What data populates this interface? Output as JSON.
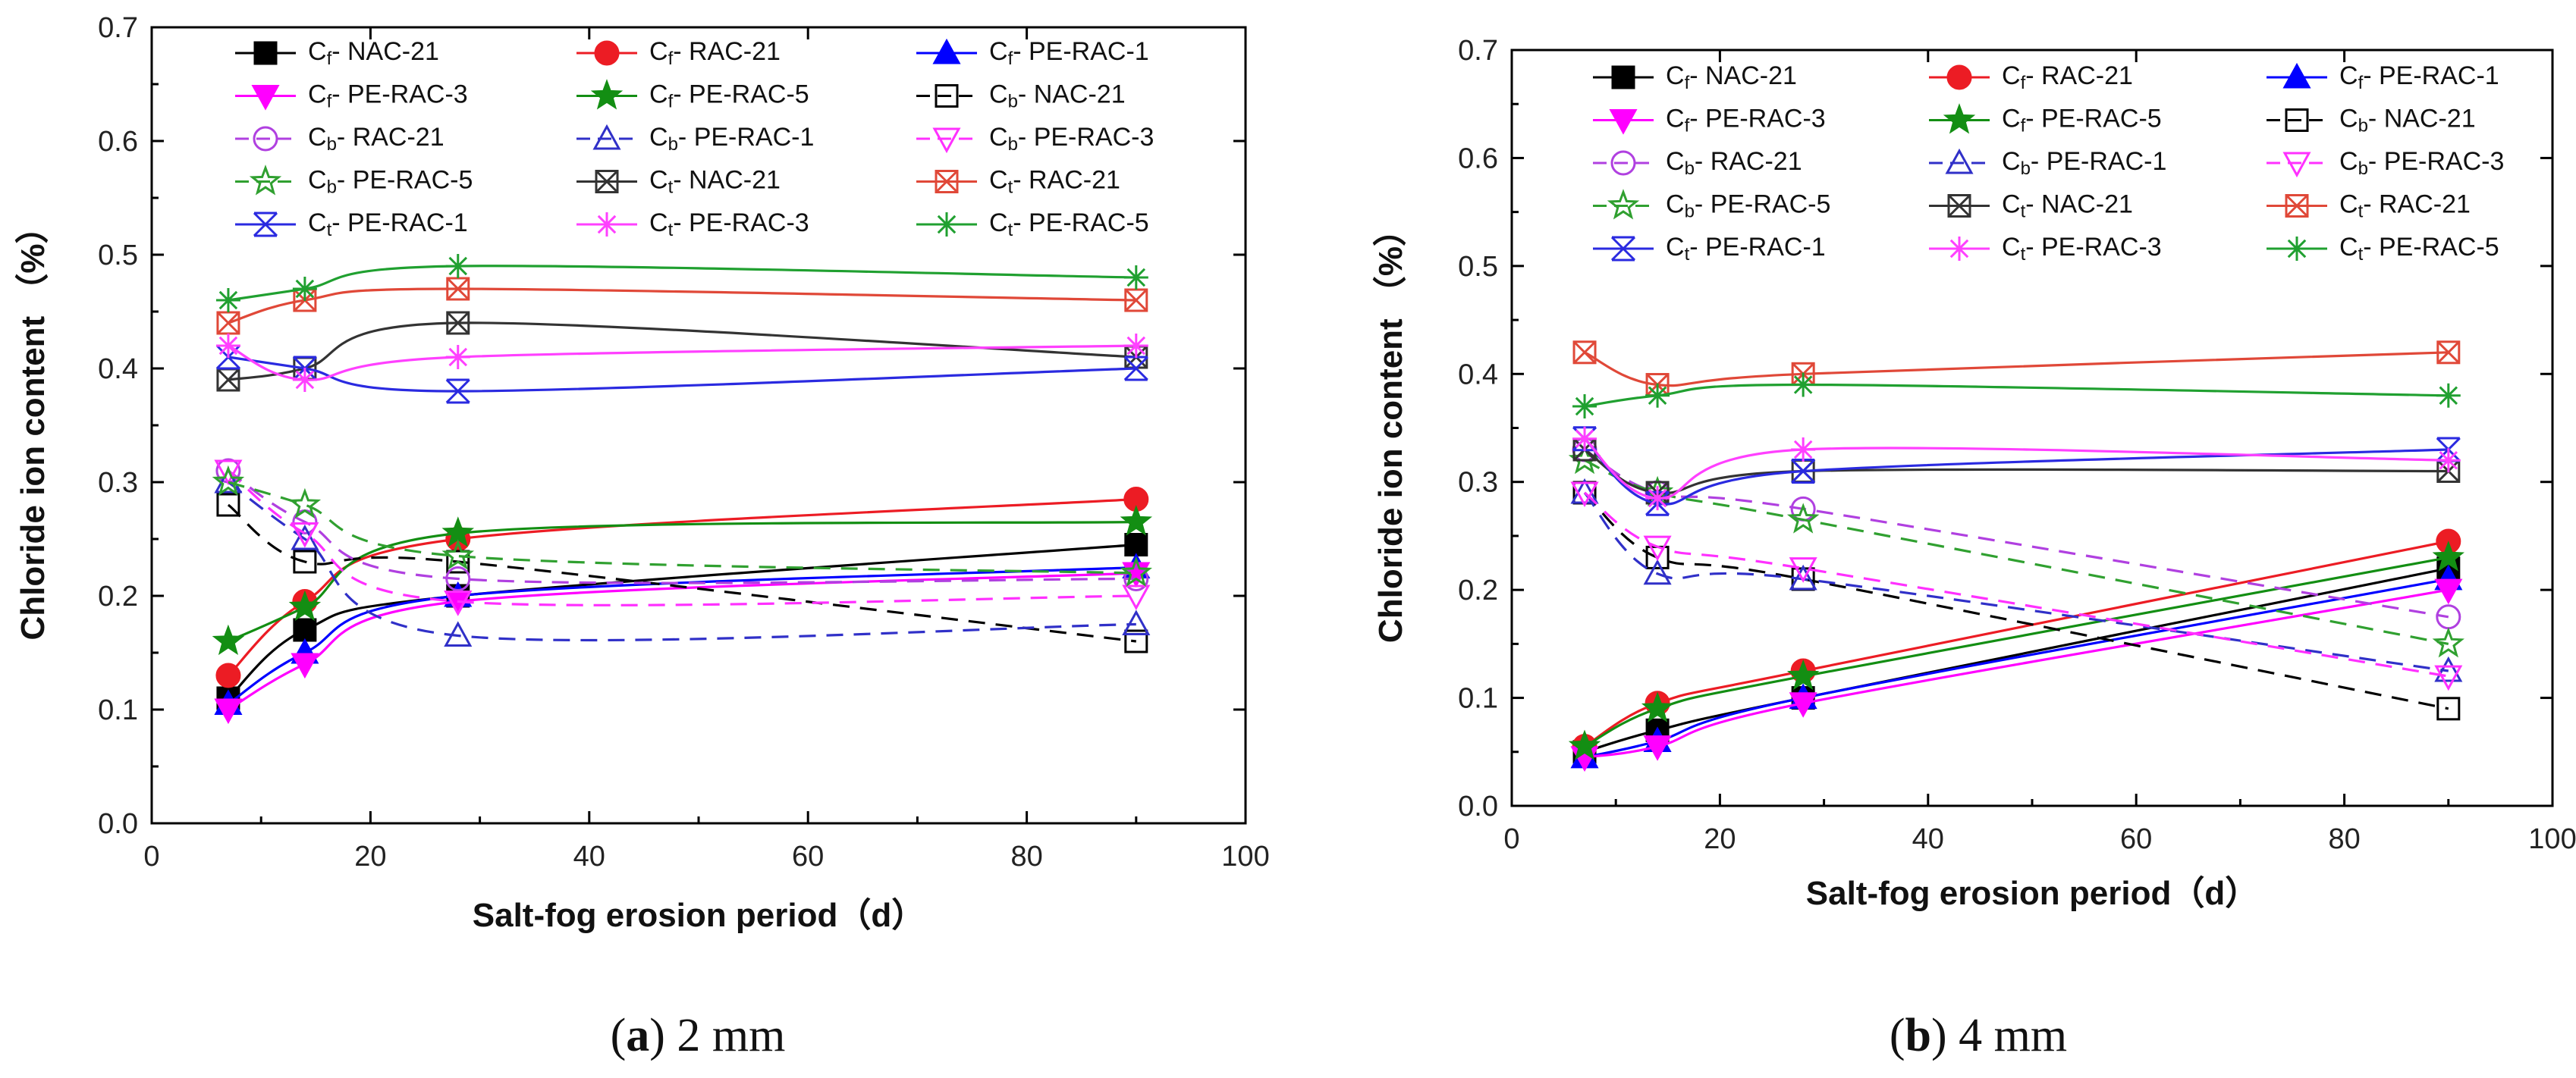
{
  "figure": {
    "x_ticks": [
      "0",
      "20",
      "40",
      "60",
      "80",
      "100"
    ],
    "y_ticks": [
      "0.0",
      "0.1",
      "0.2",
      "0.3",
      "0.4",
      "0.5",
      "0.6",
      "0.7"
    ],
    "subscripts": {
      "f": "f",
      "b": "b",
      "t": "t"
    }
  },
  "series_styles": [
    {
      "key": "f_nac",
      "sub": "f",
      "spec": "NAC-21",
      "color": "#000000",
      "marker": "square",
      "filled": true,
      "dash": false
    },
    {
      "key": "f_rac",
      "sub": "f",
      "spec": "RAC-21",
      "color": "#ec1c24",
      "marker": "circle",
      "filled": true,
      "dash": false
    },
    {
      "key": "f_pe1",
      "sub": "f",
      "spec": "PE-RAC-1",
      "color": "#0000ff",
      "marker": "triangle-up",
      "filled": true,
      "dash": false
    },
    {
      "key": "f_pe3",
      "sub": "f",
      "spec": "PE-RAC-3",
      "color": "#ff00ff",
      "marker": "triangle-down",
      "filled": true,
      "dash": false
    },
    {
      "key": "f_pe5",
      "sub": "f",
      "spec": "PE-RAC-5",
      "color": "#138e13",
      "marker": "star",
      "filled": true,
      "dash": false
    },
    {
      "key": "b_nac",
      "sub": "b",
      "spec": "NAC-21",
      "color": "#000000",
      "marker": "square",
      "filled": false,
      "dash": true
    },
    {
      "key": "b_rac",
      "sub": "b",
      "spec": "RAC-21",
      "color": "#b040e0",
      "marker": "circle",
      "filled": false,
      "dash": true
    },
    {
      "key": "b_pe1",
      "sub": "b",
      "spec": "PE-RAC-1",
      "color": "#3030c8",
      "marker": "triangle-up",
      "filled": false,
      "dash": true
    },
    {
      "key": "b_pe3",
      "sub": "b",
      "spec": "PE-RAC-3",
      "color": "#ff30ff",
      "marker": "triangle-down",
      "filled": false,
      "dash": true
    },
    {
      "key": "b_pe5",
      "sub": "b",
      "spec": "PE-RAC-5",
      "color": "#30a030",
      "marker": "star",
      "filled": false,
      "dash": true
    },
    {
      "key": "t_nac",
      "sub": "t",
      "spec": "NAC-21",
      "color": "#333333",
      "marker": "crossed-square",
      "filled": false,
      "dash": false
    },
    {
      "key": "t_rac",
      "sub": "t",
      "spec": "RAC-21",
      "color": "#e04838",
      "marker": "crossed-square",
      "filled": false,
      "dash": false
    },
    {
      "key": "t_pe1",
      "sub": "t",
      "spec": "PE-RAC-1",
      "color": "#2a2ae0",
      "marker": "bowtie",
      "filled": false,
      "dash": false
    },
    {
      "key": "t_pe3",
      "sub": "t",
      "spec": "PE-RAC-3",
      "color": "#ff40ff",
      "marker": "asterisk",
      "filled": false,
      "dash": false
    },
    {
      "key": "t_pe5",
      "sub": "t",
      "spec": "PE-RAC-5",
      "color": "#20a030",
      "marker": "asterisk",
      "filled": false,
      "dash": false
    }
  ],
  "chart_data": [
    {
      "type": "line",
      "panel_label": "a",
      "panel_caption": " 2 mm",
      "xlabel": "Salt-fog erosion period（d）",
      "ylabel": "Chloride ion content （%）",
      "xlim": [
        0,
        100
      ],
      "ylim": [
        0,
        0.7
      ],
      "x": [
        7,
        14,
        28,
        90
      ],
      "series": [
        {
          "key": "f_nac",
          "name": "Cf- NAC-21",
          "values": [
            0.11,
            0.17,
            0.2,
            0.245
          ]
        },
        {
          "key": "f_rac",
          "name": "Cf- RAC-21",
          "values": [
            0.13,
            0.195,
            0.25,
            0.285
          ]
        },
        {
          "key": "f_pe1",
          "name": "Cf- PE-RAC-1",
          "values": [
            0.105,
            0.15,
            0.2,
            0.225
          ]
        },
        {
          "key": "f_pe3",
          "name": "Cf- PE-RAC-3",
          "values": [
            0.1,
            0.14,
            0.195,
            0.22
          ]
        },
        {
          "key": "f_pe5",
          "name": "Cf- PE-RAC-5",
          "values": [
            0.16,
            0.19,
            0.255,
            0.265
          ]
        },
        {
          "key": "b_nac",
          "name": "Cb- NAC-21",
          "values": [
            0.28,
            0.23,
            0.23,
            0.16
          ]
        },
        {
          "key": "b_rac",
          "name": "Cb- RAC-21",
          "values": [
            0.31,
            0.265,
            0.215,
            0.215
          ]
        },
        {
          "key": "b_pe1",
          "name": "Cb- PE-RAC-1",
          "values": [
            0.3,
            0.25,
            0.165,
            0.175
          ]
        },
        {
          "key": "b_pe3",
          "name": "Cb- PE-RAC-3",
          "values": [
            0.31,
            0.255,
            0.195,
            0.2
          ]
        },
        {
          "key": "b_pe5",
          "name": "Cb- PE-RAC-5",
          "values": [
            0.3,
            0.28,
            0.235,
            0.22
          ]
        },
        {
          "key": "t_nac",
          "name": "Ct- NAC-21",
          "values": [
            0.39,
            0.4,
            0.44,
            0.41
          ]
        },
        {
          "key": "t_rac",
          "name": "Ct- RAC-21",
          "values": [
            0.44,
            0.46,
            0.47,
            0.46
          ]
        },
        {
          "key": "t_pe1",
          "name": "Ct- PE-RAC-1",
          "values": [
            0.41,
            0.4,
            0.38,
            0.4
          ]
        },
        {
          "key": "t_pe3",
          "name": "Ct- PE-RAC-3",
          "values": [
            0.42,
            0.39,
            0.41,
            0.42
          ]
        },
        {
          "key": "t_pe5",
          "name": "Ct- PE-RAC-5",
          "values": [
            0.46,
            0.47,
            0.49,
            0.48
          ]
        }
      ]
    },
    {
      "type": "line",
      "panel_label": "b",
      "panel_caption": " 4 mm",
      "xlabel": "Salt-fog erosion period（d）",
      "ylabel": "Chloride ion content （%）",
      "xlim": [
        0,
        100
      ],
      "ylim": [
        0,
        0.7
      ],
      "x": [
        7,
        14,
        28,
        90
      ],
      "series": [
        {
          "key": "f_nac",
          "name": "Cf- NAC-21",
          "values": [
            0.05,
            0.07,
            0.1,
            0.22
          ]
        },
        {
          "key": "f_rac",
          "name": "Cf- RAC-21",
          "values": [
            0.055,
            0.095,
            0.125,
            0.245
          ]
        },
        {
          "key": "f_pe1",
          "name": "Cf- PE-RAC-1",
          "values": [
            0.045,
            0.06,
            0.1,
            0.21
          ]
        },
        {
          "key": "f_pe3",
          "name": "Cf- PE-RAC-3",
          "values": [
            0.045,
            0.055,
            0.095,
            0.2
          ]
        },
        {
          "key": "f_pe5",
          "name": "Cf- PE-RAC-5",
          "values": [
            0.055,
            0.09,
            0.12,
            0.23
          ]
        },
        {
          "key": "b_nac",
          "name": "Cb- NAC-21",
          "values": [
            0.29,
            0.23,
            0.21,
            0.09
          ]
        },
        {
          "key": "b_rac",
          "name": "Cb- RAC-21",
          "values": [
            0.33,
            0.29,
            0.275,
            0.175
          ]
        },
        {
          "key": "b_pe1",
          "name": "Cb- PE-RAC-1",
          "values": [
            0.29,
            0.215,
            0.21,
            0.125
          ]
        },
        {
          "key": "b_pe3",
          "name": "Cb- PE-RAC-3",
          "values": [
            0.29,
            0.24,
            0.22,
            0.12
          ]
        },
        {
          "key": "b_pe5",
          "name": "Cb- PE-RAC-5",
          "values": [
            0.32,
            0.29,
            0.265,
            0.15
          ]
        },
        {
          "key": "t_nac",
          "name": "Ct- NAC-21",
          "values": [
            0.33,
            0.29,
            0.31,
            0.31
          ]
        },
        {
          "key": "t_rac",
          "name": "Ct- RAC-21",
          "values": [
            0.42,
            0.39,
            0.4,
            0.42
          ]
        },
        {
          "key": "t_pe1",
          "name": "Ct- PE-RAC-1",
          "values": [
            0.34,
            0.28,
            0.31,
            0.33
          ]
        },
        {
          "key": "t_pe3",
          "name": "Ct- PE-RAC-3",
          "values": [
            0.34,
            0.285,
            0.33,
            0.32
          ]
        },
        {
          "key": "t_pe5",
          "name": "Ct- PE-RAC-5",
          "values": [
            0.37,
            0.38,
            0.39,
            0.38
          ]
        }
      ]
    }
  ]
}
